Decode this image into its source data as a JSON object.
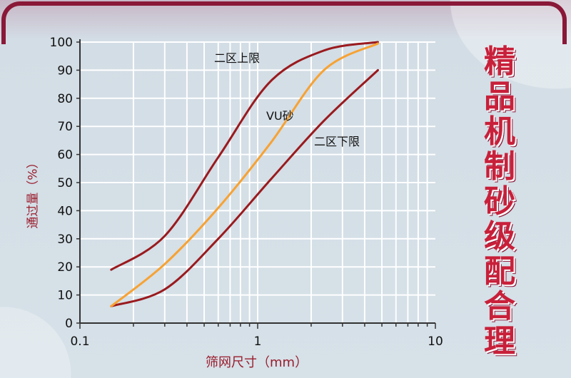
{
  "chart_data": {
    "type": "line",
    "title": "精品机制砂级配合理",
    "xlabel": "筛网尺寸（mm）",
    "ylabel": "通过量（%）",
    "xscale": "log",
    "xlim": [
      0.1,
      10
    ],
    "ylim": [
      0,
      100
    ],
    "xticks": [
      "0.1",
      "1",
      "10"
    ],
    "yticks": [
      "0",
      "10",
      "20",
      "30",
      "40",
      "50",
      "60",
      "70",
      "80",
      "90",
      "100"
    ],
    "grid": true,
    "x": [
      0.15,
      0.3,
      0.6,
      1.18,
      2.36,
      4.75
    ],
    "series": [
      {
        "name": "二区上限",
        "values": [
          19,
          31,
          59,
          86,
          97,
          100
        ],
        "color": "#9a1a1e"
      },
      {
        "name": "VU砂",
        "values": [
          6,
          21,
          41,
          64,
          90,
          99.5
        ],
        "color": "#f7a233"
      },
      {
        "name": "二区下限",
        "values": [
          6,
          12,
          30,
          51,
          72,
          90
        ],
        "color": "#9a1a1e"
      }
    ]
  },
  "title_chars": [
    "精",
    "品",
    "机",
    "制",
    "砂",
    "级",
    "配",
    "合",
    "理"
  ]
}
